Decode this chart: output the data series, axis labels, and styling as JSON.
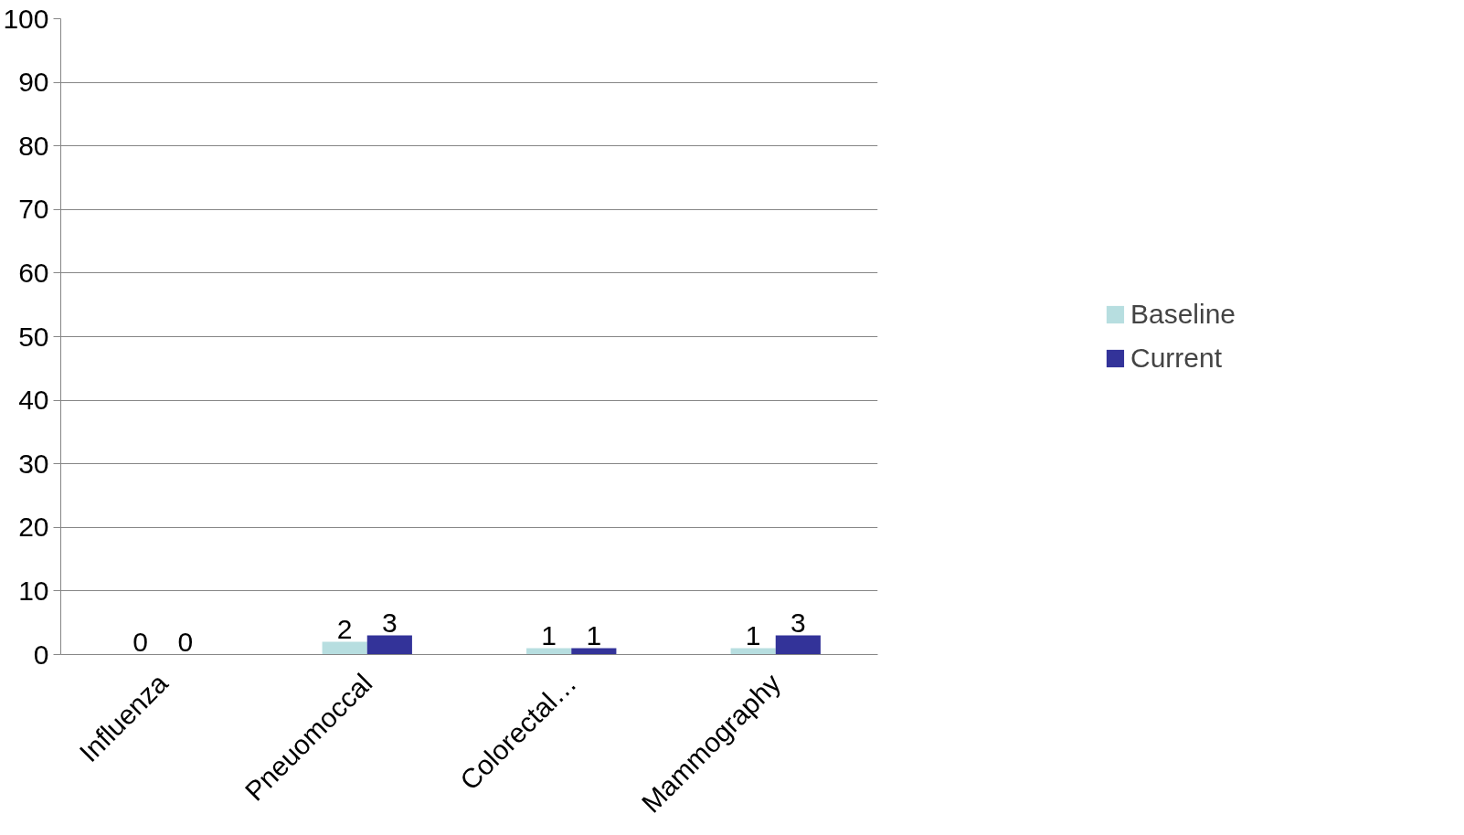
{
  "chart_data": {
    "type": "bar",
    "categories": [
      "Influenza",
      "Pneuomoccal",
      "Colorectal…",
      "Mammography"
    ],
    "series": [
      {
        "name": "Baseline",
        "color": "#b7dee0",
        "values": [
          0,
          2,
          1,
          1
        ]
      },
      {
        "name": "Current",
        "color": "#333399",
        "values": [
          0,
          3,
          1,
          3
        ]
      }
    ],
    "ylim": [
      0,
      100
    ],
    "yticks": [
      0,
      10,
      20,
      30,
      40,
      50,
      60,
      70,
      80,
      90,
      100
    ],
    "grid": "y",
    "legend": "right",
    "data_labels": true
  }
}
